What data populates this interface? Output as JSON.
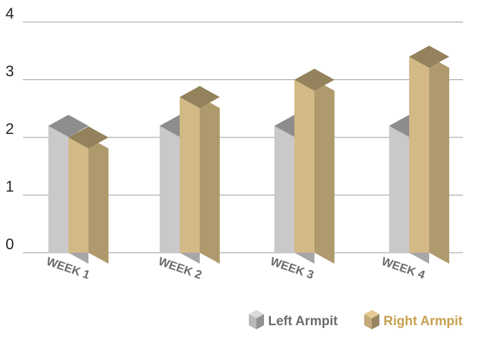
{
  "chart_data": {
    "type": "bar",
    "style": "3d-clustered",
    "categories": [
      "WEEK 1",
      "WEEK 2",
      "WEEK 3",
      "WEEK 4"
    ],
    "series": [
      {
        "name": "Left Armpit",
        "values": [
          2.2,
          2.2,
          2.2,
          2.2
        ],
        "color": "#c9c9cb"
      },
      {
        "name": "Right Armpit",
        "values": [
          2.0,
          2.7,
          3.0,
          3.4
        ],
        "color": "#d3b985"
      }
    ],
    "yticks": [
      "0",
      "1",
      "2",
      "3",
      "4"
    ],
    "ylim": [
      0,
      4
    ],
    "grid": true,
    "legend_position": "bottom-right",
    "title": "",
    "xlabel": "",
    "ylabel": ""
  }
}
